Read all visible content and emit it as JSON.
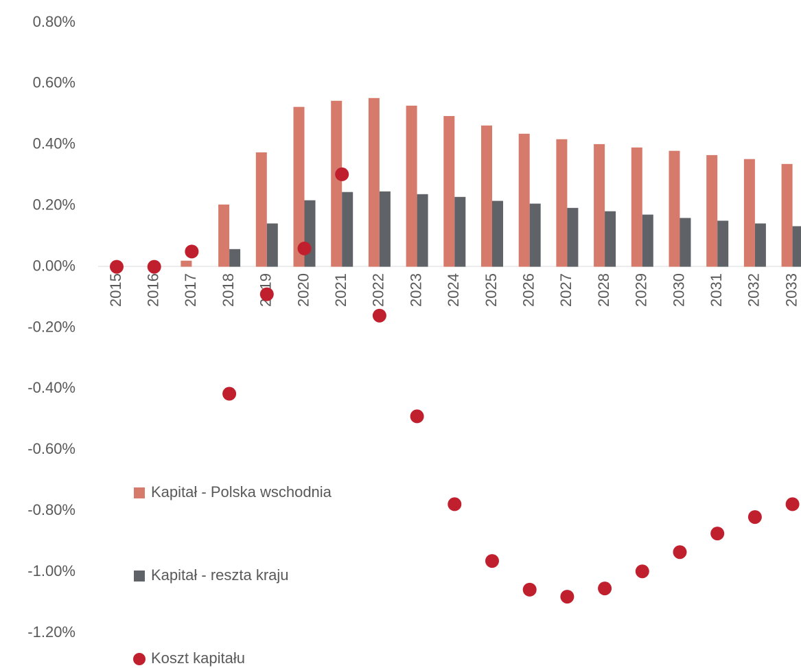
{
  "chart_data": {
    "type": "bar",
    "categories": [
      "2015",
      "2016",
      "2017",
      "2018",
      "2019",
      "2020",
      "2021",
      "2022",
      "2023",
      "2024",
      "2025",
      "2026",
      "2027",
      "2028",
      "2029",
      "2030",
      "2031",
      "2032",
      "2033"
    ],
    "series": [
      {
        "name": "Kapitał - Polska wschodnia",
        "color": "#d67b6c",
        "values": [
          0,
          0,
          0.02,
          0.204,
          0.375,
          0.524,
          0.544,
          0.553,
          0.528,
          0.494,
          0.463,
          0.436,
          0.418,
          0.402,
          0.391,
          0.38,
          0.366,
          0.353,
          0.337
        ]
      },
      {
        "name": "Kapitał - reszta kraju",
        "color": "#5f6367",
        "values": [
          0,
          0,
          0,
          0.058,
          0.142,
          0.218,
          0.245,
          0.247,
          0.238,
          0.229,
          0.216,
          0.207,
          0.193,
          0.182,
          0.171,
          0.16,
          0.151,
          0.142,
          0.133
        ]
      },
      {
        "name": "Koszt kapitału",
        "color": "#c0202e",
        "type": "scatter",
        "values": [
          0,
          0,
          0.05,
          -0.416,
          -0.09,
          0.06,
          0.303,
          -0.16,
          -0.49,
          -0.778,
          -0.964,
          -1.058,
          -1.081,
          -1.054,
          -0.998,
          -0.935,
          -0.874,
          -0.82,
          -0.778
        ]
      }
    ],
    "ylim": [
      -1.2,
      0.8
    ],
    "yticks": [
      {
        "value": 0.8,
        "label": "0.80%"
      },
      {
        "value": 0.6,
        "label": "0.60%"
      },
      {
        "value": 0.4,
        "label": "0.40%"
      },
      {
        "value": 0.2,
        "label": "0.20%"
      },
      {
        "value": 0,
        "label": "0.00%"
      },
      {
        "value": -0.2,
        "label": "-0.20%"
      },
      {
        "value": -0.4,
        "label": "-0.40%"
      },
      {
        "value": -0.6,
        "label": "-0.60%"
      },
      {
        "value": -0.8,
        "label": "-0.80%"
      },
      {
        "value": -1,
        "label": "-1.00%"
      },
      {
        "value": -1.2,
        "label": "-1.20%"
      }
    ],
    "grid": false,
    "legend": "bottom-left"
  }
}
